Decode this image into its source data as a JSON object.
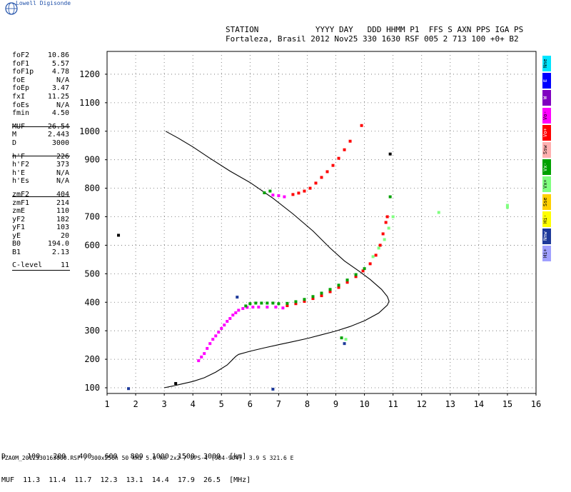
{
  "brand": "Lowell Digisonde",
  "header": {
    "line1": "STATION            YYYY DAY   DDD HHMM P1  FFS S AXN PPS IGA PS",
    "line2": "Fortaleza, Brasil 2012 Nov25 330 1630 RSF 005 2 713 100 +0+ B2"
  },
  "params": [
    {
      "label": "foF2",
      "value": "10.86"
    },
    {
      "label": "foF1",
      "value": "5.57"
    },
    {
      "label": "foF1p",
      "value": "4.78"
    },
    {
      "label": "foE",
      "value": "N/A"
    },
    {
      "label": "foEp",
      "value": "3.47"
    },
    {
      "label": "fxI",
      "value": "11.25"
    },
    {
      "label": "foEs",
      "value": "N/A"
    },
    {
      "label": "fmin",
      "value": "4.50"
    },
    {
      "label": "MUF",
      "value": "26.54"
    },
    {
      "label": "M",
      "value": "2.443"
    },
    {
      "label": "D",
      "value": "3000"
    },
    {
      "label": "h'F",
      "value": "226"
    },
    {
      "label": "h'F2",
      "value": "373"
    },
    {
      "label": "h'E",
      "value": "N/A"
    },
    {
      "label": "h'Es",
      "value": "N/A"
    },
    {
      "label": "zmF2",
      "value": "404"
    },
    {
      "label": "zmF1",
      "value": "214"
    },
    {
      "label": "zmE",
      "value": "110"
    },
    {
      "label": "yF2",
      "value": "182"
    },
    {
      "label": "yF1",
      "value": "103"
    },
    {
      "label": "yE",
      "value": "20"
    },
    {
      "label": "B0",
      "value": "194.0"
    },
    {
      "label": "B1",
      "value": "2.13"
    },
    {
      "label": "C-level",
      "value": "11"
    }
  ],
  "legend": [
    {
      "label": "Nne",
      "color": "#00e5ff"
    },
    {
      "label": "E",
      "color": "#0000ff"
    },
    {
      "label": "W",
      "color": "#8000c0"
    },
    {
      "label": "Vo-",
      "color": "#ff00ff"
    },
    {
      "label": "Vo+",
      "color": "#ff0000"
    },
    {
      "label": "Ssw",
      "color": "#ffb0b0"
    },
    {
      "label": "Vx-",
      "color": "#00a000"
    },
    {
      "label": "Vx+",
      "color": "#80ff80"
    },
    {
      "label": "Sse",
      "color": "#ffd000"
    },
    {
      "label": "Hi-",
      "color": "#ffff00"
    },
    {
      "label": "Nnw",
      "color": "#1e3a9a"
    },
    {
      "label": "Hi+",
      "color": "#a0a0ff"
    }
  ],
  "muf_table": {
    "line1": "D     100   200   400   600   800  1000  1500  3000  [km]",
    "line2": "MUF  11.3  11.4  11.7  12.3  13.1  14.4  17.9  26.5  [MHz]"
  },
  "footer": "FZA0M_2012330163000.RSF / 300x256h 50 kHz 5.0 km 2x2 / DPS-4 (904-904)  3.9 S 321.6 E",
  "chart_data": {
    "type": "scatter",
    "xlim": [
      1,
      16
    ],
    "ylim": [
      80,
      1280
    ],
    "xticks": [
      1,
      2,
      3,
      4,
      5,
      6,
      7,
      8,
      9,
      10,
      11,
      12,
      13,
      14,
      15,
      16
    ],
    "yticks": [
      100,
      200,
      300,
      400,
      500,
      600,
      700,
      800,
      900,
      1000,
      1100,
      1200
    ],
    "grid": true,
    "profile_line": [
      [
        3.0,
        100
      ],
      [
        3.3,
        106
      ],
      [
        3.6,
        113
      ],
      [
        4.0,
        122
      ],
      [
        4.4,
        135
      ],
      [
        4.8,
        155
      ],
      [
        5.2,
        180
      ],
      [
        5.5,
        210
      ],
      [
        5.6,
        217
      ],
      [
        6.0,
        228
      ],
      [
        6.5,
        240
      ],
      [
        7.0,
        251
      ],
      [
        7.5,
        262
      ],
      [
        8.0,
        273
      ],
      [
        8.5,
        286
      ],
      [
        9.0,
        299
      ],
      [
        9.5,
        315
      ],
      [
        10.0,
        335
      ],
      [
        10.5,
        362
      ],
      [
        10.8,
        390
      ],
      [
        10.86,
        404
      ],
      [
        10.8,
        420
      ],
      [
        10.6,
        445
      ],
      [
        10.2,
        480
      ],
      [
        9.8,
        510
      ],
      [
        9.3,
        545
      ],
      [
        8.8,
        590
      ],
      [
        8.2,
        650
      ],
      [
        7.5,
        710
      ],
      [
        6.8,
        765
      ],
      [
        6.0,
        820
      ],
      [
        5.3,
        860
      ],
      [
        4.6,
        905
      ],
      [
        4.0,
        945
      ],
      [
        3.5,
        975
      ],
      [
        3.05,
        1000
      ]
    ],
    "series": [
      {
        "name": "Vo-",
        "color": "#ff00ff",
        "points": [
          [
            4.2,
            195
          ],
          [
            4.3,
            208
          ],
          [
            4.4,
            220
          ],
          [
            4.5,
            238
          ],
          [
            4.6,
            255
          ],
          [
            4.7,
            270
          ],
          [
            4.8,
            282
          ],
          [
            4.9,
            295
          ],
          [
            5.0,
            308
          ],
          [
            5.1,
            320
          ],
          [
            5.2,
            333
          ],
          [
            5.3,
            343
          ],
          [
            5.4,
            355
          ],
          [
            5.5,
            363
          ],
          [
            5.6,
            372
          ],
          [
            5.75,
            378
          ],
          [
            5.9,
            382
          ],
          [
            6.1,
            383
          ],
          [
            6.3,
            383
          ],
          [
            6.6,
            383
          ],
          [
            6.9,
            383
          ],
          [
            7.15,
            380
          ],
          [
            7.2,
            770
          ],
          [
            7.0,
            774
          ],
          [
            6.8,
            776
          ]
        ]
      },
      {
        "name": "Vo+",
        "color": "#ff0000",
        "points": [
          [
            7.3,
            388
          ],
          [
            7.6,
            395
          ],
          [
            7.9,
            403
          ],
          [
            8.2,
            413
          ],
          [
            8.5,
            423
          ],
          [
            8.8,
            437
          ],
          [
            9.1,
            452
          ],
          [
            9.4,
            470
          ],
          [
            9.7,
            490
          ],
          [
            9.95,
            510
          ],
          [
            10.2,
            535
          ],
          [
            10.4,
            565
          ],
          [
            10.55,
            600
          ],
          [
            10.65,
            640
          ],
          [
            10.75,
            680
          ],
          [
            10.8,
            700
          ],
          [
            7.5,
            778
          ],
          [
            7.7,
            783
          ],
          [
            7.9,
            790
          ],
          [
            8.1,
            800
          ],
          [
            8.3,
            818
          ],
          [
            8.5,
            838
          ],
          [
            8.7,
            858
          ],
          [
            8.9,
            880
          ],
          [
            9.1,
            905
          ],
          [
            9.3,
            935
          ],
          [
            9.5,
            965
          ],
          [
            9.9,
            1020
          ]
        ]
      },
      {
        "name": "Vx-",
        "color": "#00a000",
        "points": [
          [
            5.85,
            387
          ],
          [
            6.0,
            395
          ],
          [
            6.2,
            397
          ],
          [
            6.4,
            397
          ],
          [
            6.6,
            397
          ],
          [
            6.8,
            397
          ],
          [
            7.0,
            395
          ],
          [
            7.3,
            396
          ],
          [
            7.6,
            402
          ],
          [
            7.9,
            410
          ],
          [
            8.2,
            420
          ],
          [
            8.5,
            432
          ],
          [
            8.8,
            445
          ],
          [
            9.1,
            460
          ],
          [
            9.4,
            478
          ],
          [
            9.7,
            497
          ],
          [
            10.0,
            518
          ],
          [
            6.7,
            790
          ],
          [
            6.5,
            784
          ],
          [
            9.2,
            275
          ],
          [
            10.9,
            770
          ]
        ]
      },
      {
        "name": "Vx+",
        "color": "#80ff80",
        "points": [
          [
            10.3,
            560
          ],
          [
            10.5,
            590
          ],
          [
            10.7,
            620
          ],
          [
            10.85,
            660
          ],
          [
            11.0,
            700
          ],
          [
            9.35,
            270
          ],
          [
            15.0,
            740
          ],
          [
            15.0,
            733
          ],
          [
            12.6,
            715
          ]
        ]
      },
      {
        "name": "Nnw",
        "color": "#1e3a9a",
        "points": [
          [
            9.3,
            255
          ],
          [
            5.55,
            418
          ],
          [
            1.75,
            97
          ],
          [
            6.8,
            95
          ]
        ]
      },
      {
        "name": "other",
        "color": "#000000",
        "points": [
          [
            1.4,
            635
          ],
          [
            3.4,
            115
          ],
          [
            10.9,
            920
          ]
        ]
      }
    ]
  }
}
